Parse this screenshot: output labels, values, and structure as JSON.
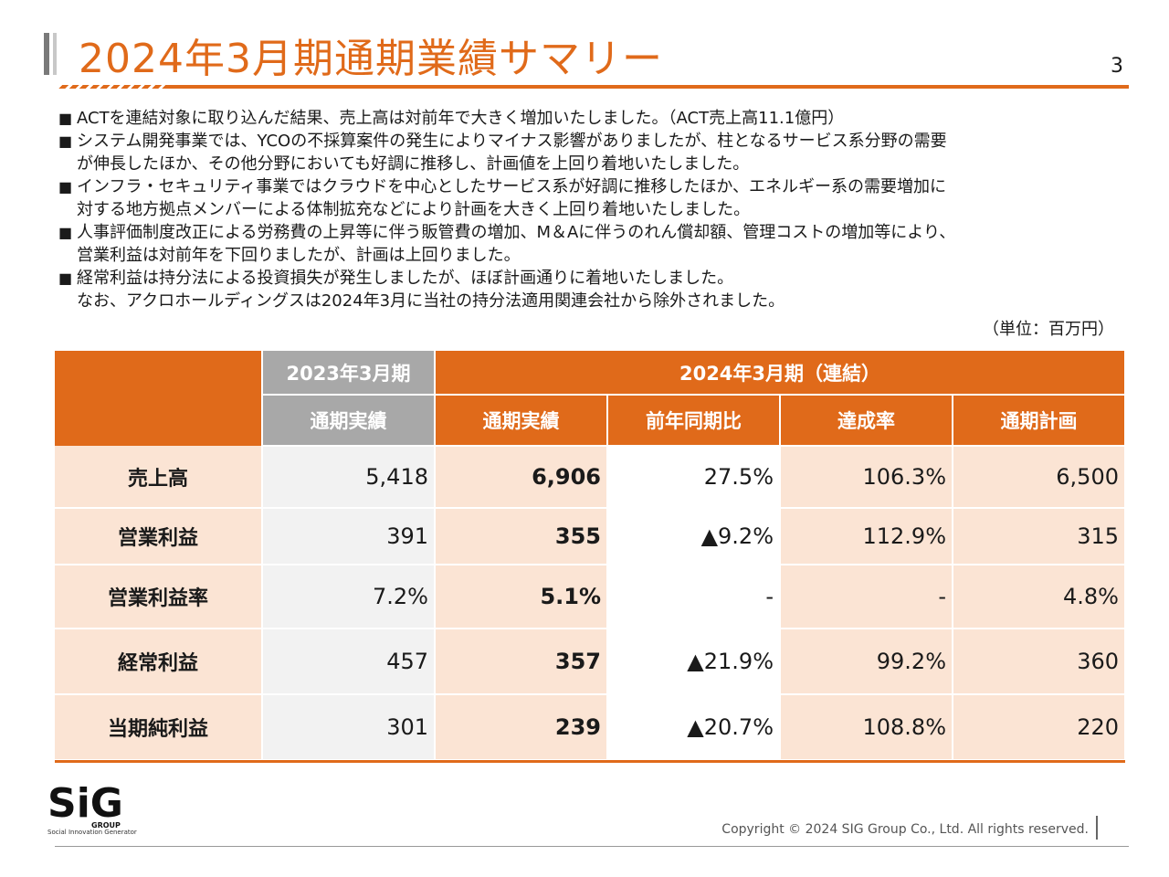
{
  "title": "2024年3月期通期業績サマリー",
  "page_number": "3",
  "bullets": [
    {
      "marker": "■",
      "lines": [
        "ACTを連結対象に取り込んだ結果、売上高は対前年で大きく増加いたしました。（ACT売上高11.1億円）"
      ]
    },
    {
      "marker": "■",
      "lines": [
        "システム開発事業では、YCOの不採算案件の発生によりマイナス影響がありましたが、柱となるサービス系分野の需要",
        "が伸長したほか、その他分野においても好調に推移し、計画値を上回り着地いたしました。"
      ]
    },
    {
      "marker": "■",
      "lines": [
        "インフラ・セキュリティ事業ではクラウドを中心としたサービス系が好調に推移したほか、エネルギー系の需要増加に",
        "対する地方拠点メンバーによる体制拡充などにより計画を大きく上回り着地いたしました。"
      ]
    },
    {
      "marker": "■",
      "lines": [
        "人事評価制度改正による労務費の上昇等に伴う販管費の増加、M＆Aに伴うのれん償却額、管理コストの増加等により、",
        "営業利益は対前年を下回りましたが、計画は上回りました。"
      ]
    },
    {
      "marker": "■",
      "lines": [
        "経常利益は持分法による投資損失が発生しましたが、ほぼ計画通りに着地いたしました。",
        "なお、アクロホールディングスは2024年3月に当社の持分法適用関連会社から除外されました。"
      ]
    }
  ],
  "unit": "（単位：百万円）",
  "table": {
    "group_headers": [
      "2023年3月期",
      "2024年3月期（連結）"
    ],
    "column_headers": [
      "通期実績",
      "通期実績",
      "前年同期比",
      "達成率",
      "通期計画"
    ],
    "rows": [
      {
        "label": "売上高",
        "values": [
          "5,418",
          "6,906",
          "27.5%",
          "106.3%",
          "6,500"
        ]
      },
      {
        "label": "営業利益",
        "values": [
          "391",
          "355",
          "▲9.2%",
          "112.9%",
          "315"
        ]
      },
      {
        "label": "営業利益率",
        "values": [
          "7.2%",
          "5.1%",
          "-",
          "-",
          "4.8%"
        ]
      },
      {
        "label": "経常利益",
        "values": [
          "457",
          "357",
          "▲21.9%",
          "99.2%",
          "360"
        ]
      },
      {
        "label": "当期純利益",
        "values": [
          "301",
          "239",
          "▲20.7%",
          "108.8%",
          "220"
        ]
      }
    ]
  },
  "logo": {
    "text": "SiG",
    "group": "GROUP",
    "tagline": "Social Innovation Generator"
  },
  "copyright": "Copyright © 2024  SIG Group Co., Ltd. All rights reserved.",
  "colors": {
    "accent": "#e06a1a",
    "header_gray": "#a8a8a8",
    "row_peach": "#fbe4d4"
  }
}
